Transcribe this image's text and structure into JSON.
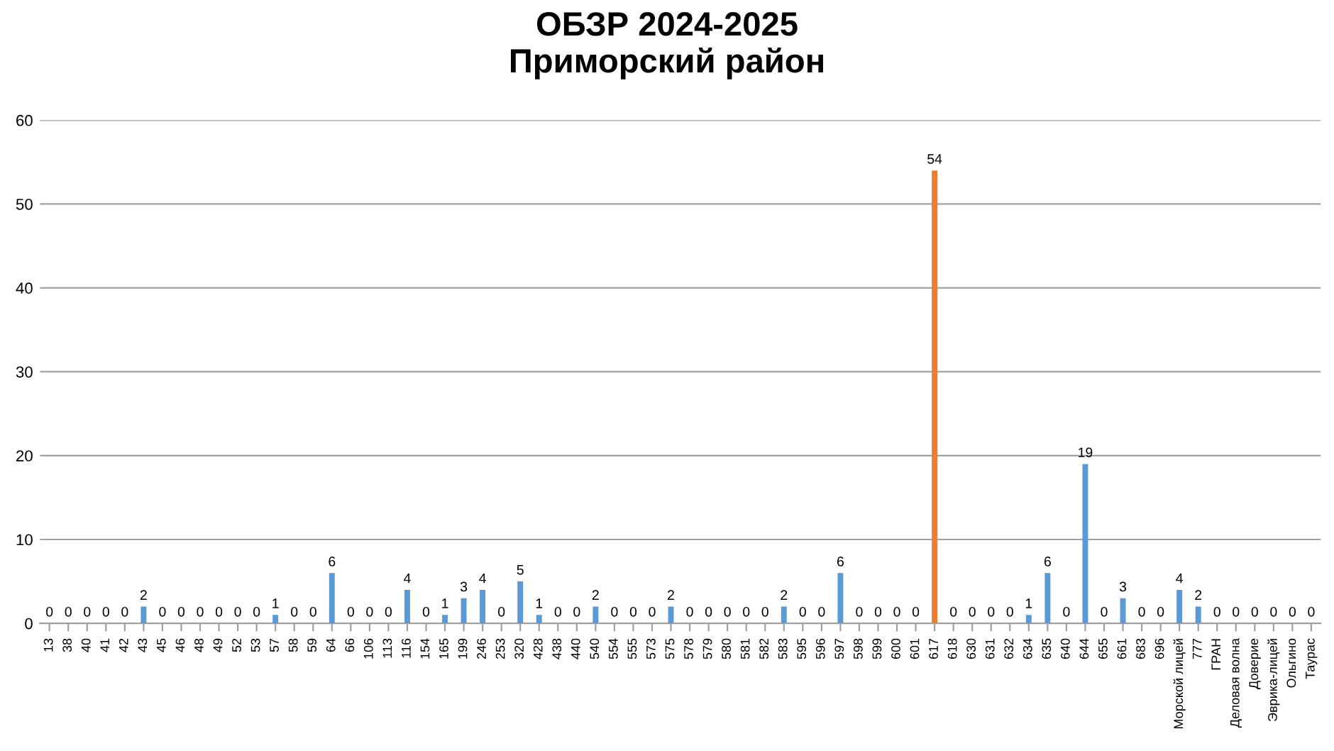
{
  "chart_data": {
    "type": "bar",
    "title": "ОБЗР 2024-2025\nПриморский район",
    "categories": [
      "13",
      "38",
      "40",
      "41",
      "42",
      "43",
      "45",
      "46",
      "48",
      "49",
      "52",
      "53",
      "57",
      "58",
      "59",
      "64",
      "66",
      "106",
      "113",
      "116",
      "154",
      "165",
      "199",
      "246",
      "253",
      "320",
      "428",
      "438",
      "440",
      "540",
      "554",
      "555",
      "573",
      "575",
      "578",
      "579",
      "580",
      "581",
      "582",
      "583",
      "595",
      "596",
      "597",
      "598",
      "599",
      "600",
      "601",
      "617",
      "618",
      "630",
      "631",
      "632",
      "634",
      "635",
      "640",
      "644",
      "655",
      "661",
      "683",
      "696",
      "Морской лицей",
      "777",
      "ГРАН",
      "Деловая волна",
      "Доверие",
      "Эврика-лицей",
      "Ольгино",
      "Таурас"
    ],
    "values": [
      0,
      0,
      0,
      0,
      0,
      2,
      0,
      0,
      0,
      0,
      0,
      0,
      1,
      0,
      0,
      6,
      0,
      0,
      0,
      4,
      0,
      1,
      3,
      4,
      0,
      5,
      1,
      0,
      0,
      2,
      0,
      0,
      0,
      2,
      0,
      0,
      0,
      0,
      0,
      2,
      0,
      0,
      6,
      0,
      0,
      0,
      0,
      54,
      0,
      0,
      0,
      0,
      1,
      6,
      0,
      19,
      0,
      3,
      0,
      0,
      4,
      2,
      0,
      0,
      0,
      0,
      0,
      0
    ],
    "colors": [
      "#5b9bd5",
      "#5b9bd5",
      "#5b9bd5",
      "#5b9bd5",
      "#5b9bd5",
      "#5b9bd5",
      "#5b9bd5",
      "#5b9bd5",
      "#5b9bd5",
      "#5b9bd5",
      "#5b9bd5",
      "#5b9bd5",
      "#5b9bd5",
      "#5b9bd5",
      "#5b9bd5",
      "#5b9bd5",
      "#5b9bd5",
      "#5b9bd5",
      "#5b9bd5",
      "#5b9bd5",
      "#5b9bd5",
      "#5b9bd5",
      "#5b9bd5",
      "#5b9bd5",
      "#5b9bd5",
      "#5b9bd5",
      "#5b9bd5",
      "#5b9bd5",
      "#5b9bd5",
      "#5b9bd5",
      "#5b9bd5",
      "#5b9bd5",
      "#5b9bd5",
      "#5b9bd5",
      "#5b9bd5",
      "#5b9bd5",
      "#5b9bd5",
      "#5b9bd5",
      "#5b9bd5",
      "#5b9bd5",
      "#5b9bd5",
      "#5b9bd5",
      "#5b9bd5",
      "#5b9bd5",
      "#5b9bd5",
      "#5b9bd5",
      "#5b9bd5",
      "#ed7d31",
      "#5b9bd5",
      "#5b9bd5",
      "#5b9bd5",
      "#5b9bd5",
      "#5b9bd5",
      "#5b9bd5",
      "#5b9bd5",
      "#5b9bd5",
      "#5b9bd5",
      "#5b9bd5",
      "#5b9bd5",
      "#5b9bd5",
      "#5b9bd5",
      "#5b9bd5",
      "#5b9bd5",
      "#5b9bd5",
      "#5b9bd5",
      "#5b9bd5",
      "#5b9bd5",
      "#5b9bd5"
    ],
    "ylim": [
      0,
      60
    ],
    "yticks": [
      0,
      10,
      20,
      30,
      40,
      50,
      60
    ],
    "grid": "y",
    "data_labels": true
  }
}
